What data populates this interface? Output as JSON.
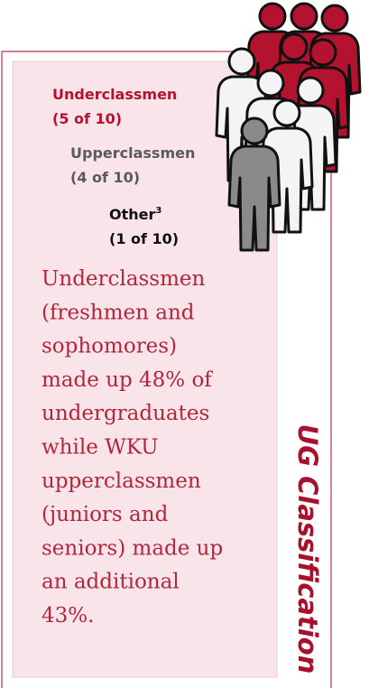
{
  "groups": [
    {
      "label": "Underclassmen",
      "count": "(5 of 10)"
    },
    {
      "label": "Upperclassmen",
      "count": "(4 of 10)"
    },
    {
      "label": "Other",
      "footnote": "3",
      "count": "(1 of 10)"
    }
  ],
  "paragraph": [
    "Underclassmen",
    "(freshmen and",
    "sophomores)",
    "made up 48% of",
    "undergraduates",
    "while WKU",
    "upperclassmen",
    "(juniors and",
    "seniors) made up",
    "an additional",
    "43%."
  ],
  "side_title": "UG Classification"
}
